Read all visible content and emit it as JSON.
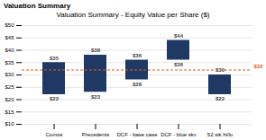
{
  "chart_data": {
    "type": "bar",
    "header": "Valuation Summary",
    "title": "Valuation Summary - Equity Value per Share ($)",
    "categories": [
      "Comps",
      "Precedents",
      "DCF - base case",
      "DCF - blue sky",
      "52 wk hi/lo"
    ],
    "low": [
      22,
      23,
      28,
      36,
      22
    ],
    "high": [
      35,
      38,
      36,
      44,
      30
    ],
    "low_labels": [
      "$22",
      "$23",
      "$28",
      "$36",
      "$22"
    ],
    "high_labels": [
      "$35",
      "$38",
      "$36",
      "$44",
      "$30"
    ],
    "data_labels": true,
    "color": "#1f3864",
    "reference_line": {
      "value": 32,
      "label": "$32",
      "color": "#e05c20"
    },
    "ylim": [
      10,
      50
    ],
    "yticks": [
      {
        "value": 10,
        "label": "$10"
      },
      {
        "value": 15,
        "label": "$15"
      },
      {
        "value": 20,
        "label": "$20"
      },
      {
        "value": 25,
        "label": "$25"
      },
      {
        "value": 30,
        "label": "$30"
      },
      {
        "value": 35,
        "label": "$35"
      },
      {
        "value": 40,
        "label": "$40"
      },
      {
        "value": 45,
        "label": "$45"
      },
      {
        "value": 50,
        "label": "$50"
      }
    ],
    "grid": true
  }
}
